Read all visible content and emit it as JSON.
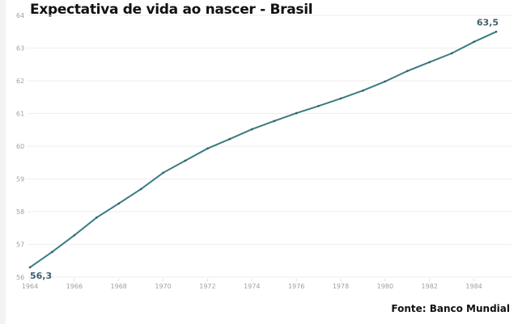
{
  "header": {
    "title": "Expectativa de vida ao nascer - Brasil"
  },
  "footer": {
    "source": "Fonte: Banco Mundial"
  },
  "colors": {
    "line": "#3a7c82",
    "grid": "#eeeeee",
    "tick_text": "#a0a0a0",
    "data_label": "#3f5f6e"
  },
  "chart_data": {
    "type": "line",
    "title": "Expectativa de vida ao nascer - Brasil",
    "xlabel": "",
    "ylabel": "",
    "ylim": [
      56,
      64
    ],
    "xlim": [
      1964,
      1985
    ],
    "grid": true,
    "legend": null,
    "yticks": [
      "64",
      "63",
      "62",
      "61",
      "60",
      "59",
      "58",
      "57",
      "56"
    ],
    "xticks": [
      "1964",
      "1966",
      "1968",
      "1970",
      "1972",
      "1974",
      "1976",
      "1978",
      "1980",
      "1982",
      "1984"
    ],
    "x": [
      1964,
      1965,
      1966,
      1967,
      1968,
      1969,
      1970,
      1971,
      1972,
      1973,
      1974,
      1975,
      1976,
      1977,
      1978,
      1979,
      1980,
      1981,
      1982,
      1983,
      1984,
      1985
    ],
    "series": [
      {
        "name": "Expectativa de vida ao nascer",
        "values": [
          56.3,
          56.77,
          57.28,
          57.82,
          58.25,
          58.69,
          59.19,
          59.56,
          59.93,
          60.22,
          60.52,
          60.77,
          61.01,
          61.23,
          61.46,
          61.7,
          61.98,
          62.3,
          62.57,
          62.84,
          63.19,
          63.5
        ]
      }
    ],
    "annotations": [
      {
        "x": 1964,
        "y": 56.3,
        "text": "56,3"
      },
      {
        "x": 1985,
        "y": 63.5,
        "text": "63,5"
      }
    ],
    "source": "Fonte: Banco Mundial"
  }
}
